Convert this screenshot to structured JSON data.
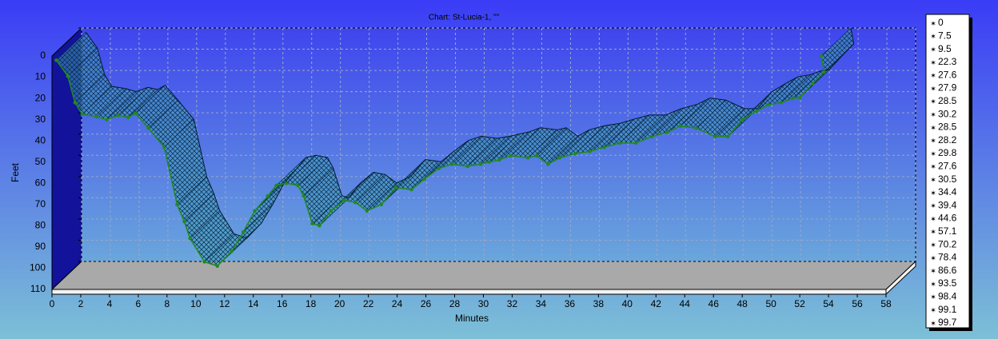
{
  "chart_data": {
    "type": "ribbon",
    "title": "Chart: St-Lucia-1, \"\"",
    "x_label": "Minutes",
    "y_label": "Feet",
    "xlim": [
      0,
      58
    ],
    "xticks": [
      0,
      2,
      4,
      6,
      8,
      10,
      12,
      14,
      16,
      18,
      20,
      22,
      24,
      26,
      28,
      30,
      32,
      34,
      36,
      38,
      40,
      42,
      44,
      46,
      48,
      50,
      52,
      54,
      56,
      58
    ],
    "ylim": [
      110,
      0
    ],
    "yticks": [
      0,
      10,
      20,
      30,
      40,
      50,
      60,
      70,
      80,
      90,
      100,
      110
    ],
    "grid": true,
    "series": [
      {
        "color": "#1f8a1f",
        "x": [
          0.3,
          1.1,
          1.6,
          2.1,
          3.1,
          3.8,
          4.6,
          5.3,
          5.8,
          6.7,
          7.8,
          8.7,
          9.2,
          9.6,
          10.6,
          11.5,
          12.5,
          13.3,
          14.1,
          15,
          15.6,
          16.3,
          17.1,
          17.5,
          18.1,
          18.6,
          19.4,
          20.3,
          21.1,
          21.9,
          22.9,
          23.9,
          25,
          25.9,
          26.9,
          27.8,
          28.9,
          29.8,
          30.4,
          31.1,
          31.9,
          33.1,
          33.7,
          34.5,
          35.3,
          36.4,
          37.4,
          38.4,
          39.5,
          40.6,
          41.7,
          42.8,
          43.7,
          44.8,
          46.1,
          47,
          48,
          49,
          49.8,
          50.7,
          51.5,
          52,
          52.9,
          53.7,
          53.5
        ],
        "values": [
          2,
          9.5,
          22,
          27.5,
          28.6,
          30,
          28,
          29,
          27,
          34,
          43,
          70,
          78,
          86,
          97,
          99,
          92,
          83,
          73,
          66,
          61,
          60,
          61,
          66,
          79,
          80,
          73,
          68,
          69,
          73,
          70,
          62,
          63,
          58,
          53,
          51,
          52,
          51,
          50,
          49,
          47,
          48,
          47,
          51,
          48,
          46,
          45,
          43,
          41,
          41,
          38,
          36,
          33,
          34,
          38,
          38,
          30,
          26,
          23,
          22,
          20,
          19.6,
          13,
          7.5,
          0
        ]
      }
    ],
    "legend": {
      "values": [
        0,
        7.5,
        9.5,
        22.3,
        27.6,
        27.9,
        28.5,
        30.2,
        28.5,
        28.2,
        29.8,
        27.6,
        30.5,
        34.4,
        39.4,
        44.6,
        57.1,
        70.2,
        78.4,
        86.6,
        93.5,
        98.4,
        99.1,
        99.7
      ],
      "colors": [
        "#000000",
        "#000000",
        "#1f8a1f",
        "#1f8a1f",
        "#1f8a1f",
        "#1f8a1f",
        "#1f8a1f",
        "#1f8a1f",
        "#1f8a1f",
        "#1f8a1f",
        "#1f8a1f",
        "#1f8a1f",
        "#1f8a1f",
        "#1f8a1f",
        "#1f8a1f",
        "#1f8a1f",
        "#1f8a1f",
        "#1f8a1f",
        "#1f8a1f",
        "#1f8a1f",
        "#1f8a1f",
        "#1f8a1f",
        "#1f8a1f",
        "#1f8a1f"
      ]
    }
  }
}
